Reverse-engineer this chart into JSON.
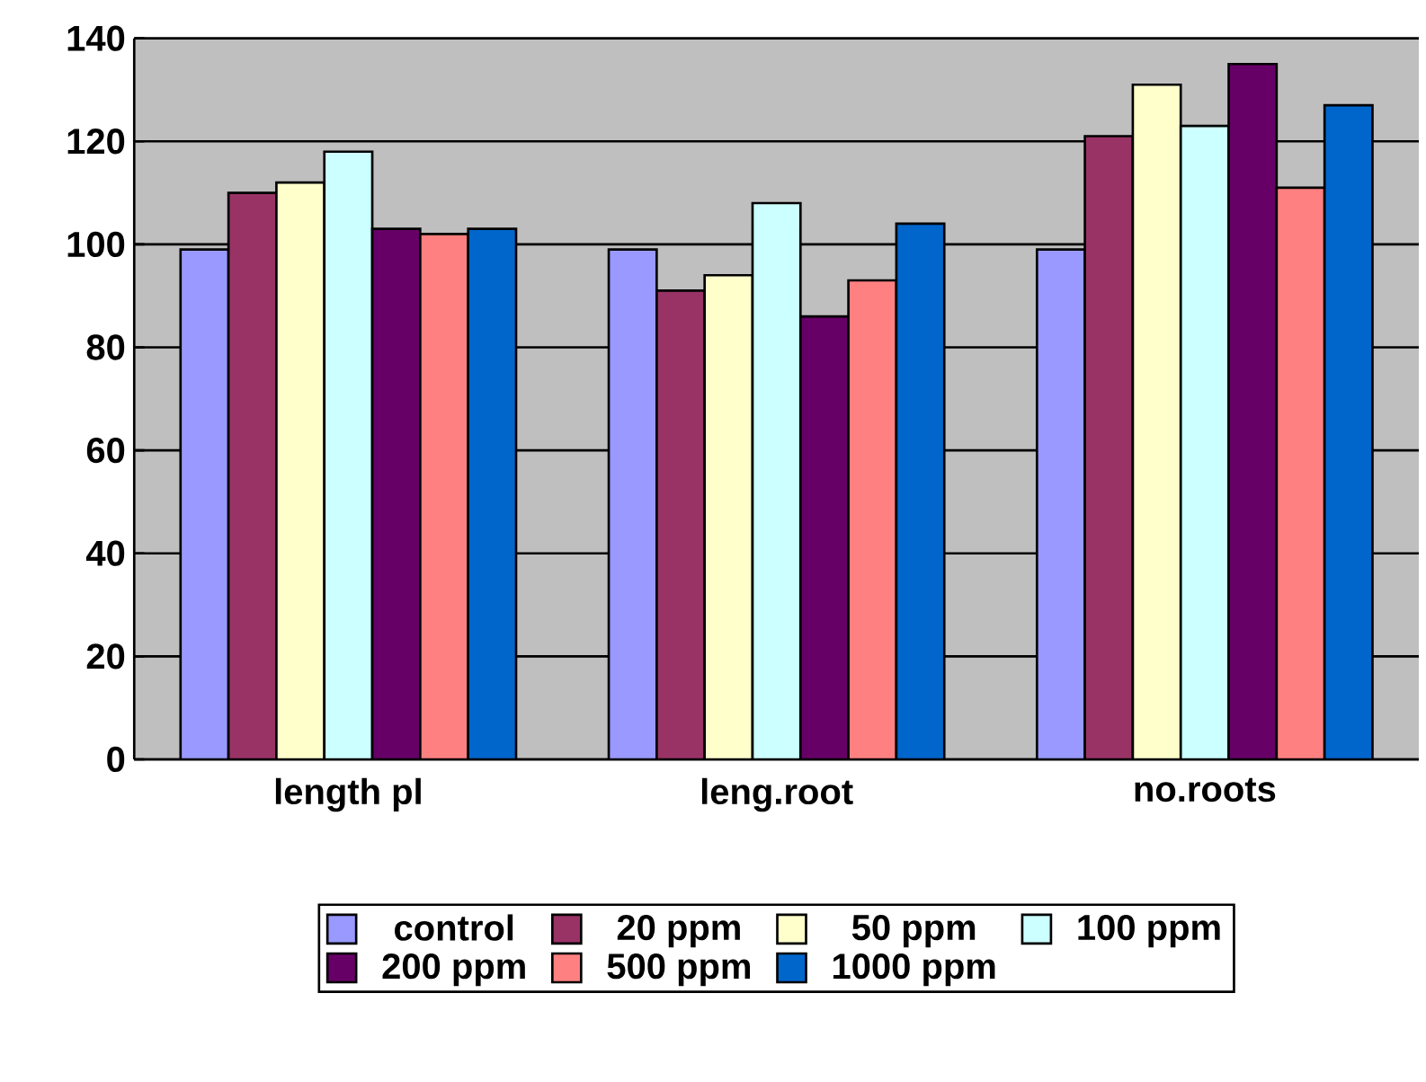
{
  "chart_data": {
    "type": "bar",
    "categories": [
      "length pl",
      "leng.root",
      "no.roots"
    ],
    "series": [
      {
        "name": "control",
        "color": "#9999ff",
        "values": [
          99,
          99,
          99
        ]
      },
      {
        "name": "20 ppm",
        "color": "#993366",
        "values": [
          110,
          91,
          121
        ]
      },
      {
        "name": "50 ppm",
        "color": "#ffffcc",
        "values": [
          112,
          94,
          131
        ]
      },
      {
        "name": "100 ppm",
        "color": "#ccffff",
        "values": [
          118,
          108,
          123
        ]
      },
      {
        "name": "200 ppm",
        "color": "#660066",
        "values": [
          103,
          86,
          135
        ]
      },
      {
        "name": "500 ppm",
        "color": "#ff8080",
        "values": [
          102,
          93,
          111
        ]
      },
      {
        "name": "1000 ppm",
        "color": "#0066cc",
        "values": [
          103,
          104,
          127
        ]
      }
    ],
    "ylim": [
      0,
      140
    ],
    "yticks": [
      0,
      20,
      40,
      60,
      80,
      100,
      120,
      140
    ],
    "grid": "y",
    "legend": "bottom"
  }
}
